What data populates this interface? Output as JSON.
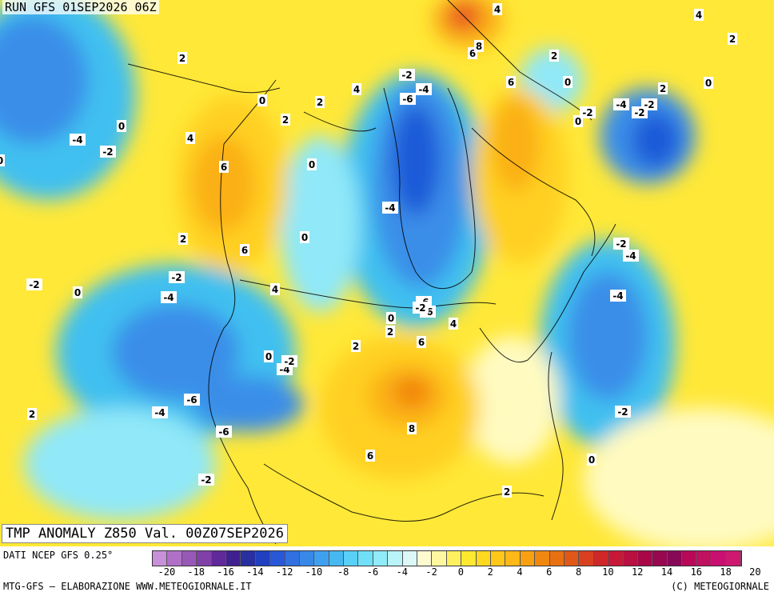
{
  "header": {
    "run_label": "RUN GFS 01SEP2026 06Z"
  },
  "map": {
    "title": "TMP ANOMALY Z850 Val. 00Z07SEP2026",
    "contour_labels": [
      "-6",
      "-6",
      "-6",
      "-6",
      "-6",
      "-4",
      "-4",
      "-4",
      "-4",
      "-4",
      "-4",
      "-4",
      "-4",
      "-4",
      "-2",
      "-2",
      "-2",
      "-2",
      "-2",
      "-2",
      "-2",
      "-2",
      "-2",
      "-2",
      "-2",
      "-2",
      "0",
      "0",
      "0",
      "0",
      "0",
      "0",
      "0",
      "0",
      "0",
      "0",
      "0",
      "0",
      "2",
      "2",
      "2",
      "2",
      "2",
      "2",
      "2",
      "2",
      "2",
      "2",
      "2",
      "4",
      "4",
      "4",
      "4",
      "4",
      "4",
      "6",
      "6",
      "6",
      "6",
      "6",
      "6",
      "8",
      "8"
    ],
    "colors": {
      "deep_blue": "#1e5ad8",
      "blue": "#3a8ee8",
      "light_blue": "#40c0f0",
      "cyan": "#90e8f8",
      "pale": "#dcf6f8",
      "pale_yellow": "#fffac0",
      "yellow": "#ffe838",
      "gold": "#ffd020",
      "orange": "#fbb018",
      "dark_orange": "#f08010",
      "red": "#e85020"
    }
  },
  "footer": {
    "data_source": "DATI NCEP GFS 0.25°",
    "credit_left": "MTG-GFS — ELABORAZIONE WWW.METEOGIORNALE.IT",
    "credit_right": "(C) METEOGIORNALE"
  },
  "colorbar": {
    "colors": [
      "#c890d8",
      "#b070c8",
      "#9858b8",
      "#8040a8",
      "#602898",
      "#402090",
      "#2830a0",
      "#2040c0",
      "#2858d8",
      "#3070e0",
      "#3888e8",
      "#40a0f0",
      "#48b8f0",
      "#58d0f8",
      "#70e0f8",
      "#90ecf8",
      "#b8f4f8",
      "#dcf8f8",
      "#fffbd0",
      "#fff8a0",
      "#fff060",
      "#ffe830",
      "#ffd820",
      "#ffc818",
      "#ffb818",
      "#f8a010",
      "#f08810",
      "#e87010",
      "#e05818",
      "#d84020",
      "#d02828",
      "#c81838",
      "#b81040",
      "#a80848",
      "#980850",
      "#880858",
      "#b80858",
      "#c01060",
      "#c81070",
      "#d01870"
    ],
    "ticks": [
      "-20",
      "-18",
      "-16",
      "-14",
      "-12",
      "-10",
      "-8",
      "-6",
      "-4",
      "-2",
      "0",
      "2",
      "4",
      "6",
      "8",
      "10",
      "12",
      "14",
      "16",
      "18",
      "20"
    ]
  }
}
